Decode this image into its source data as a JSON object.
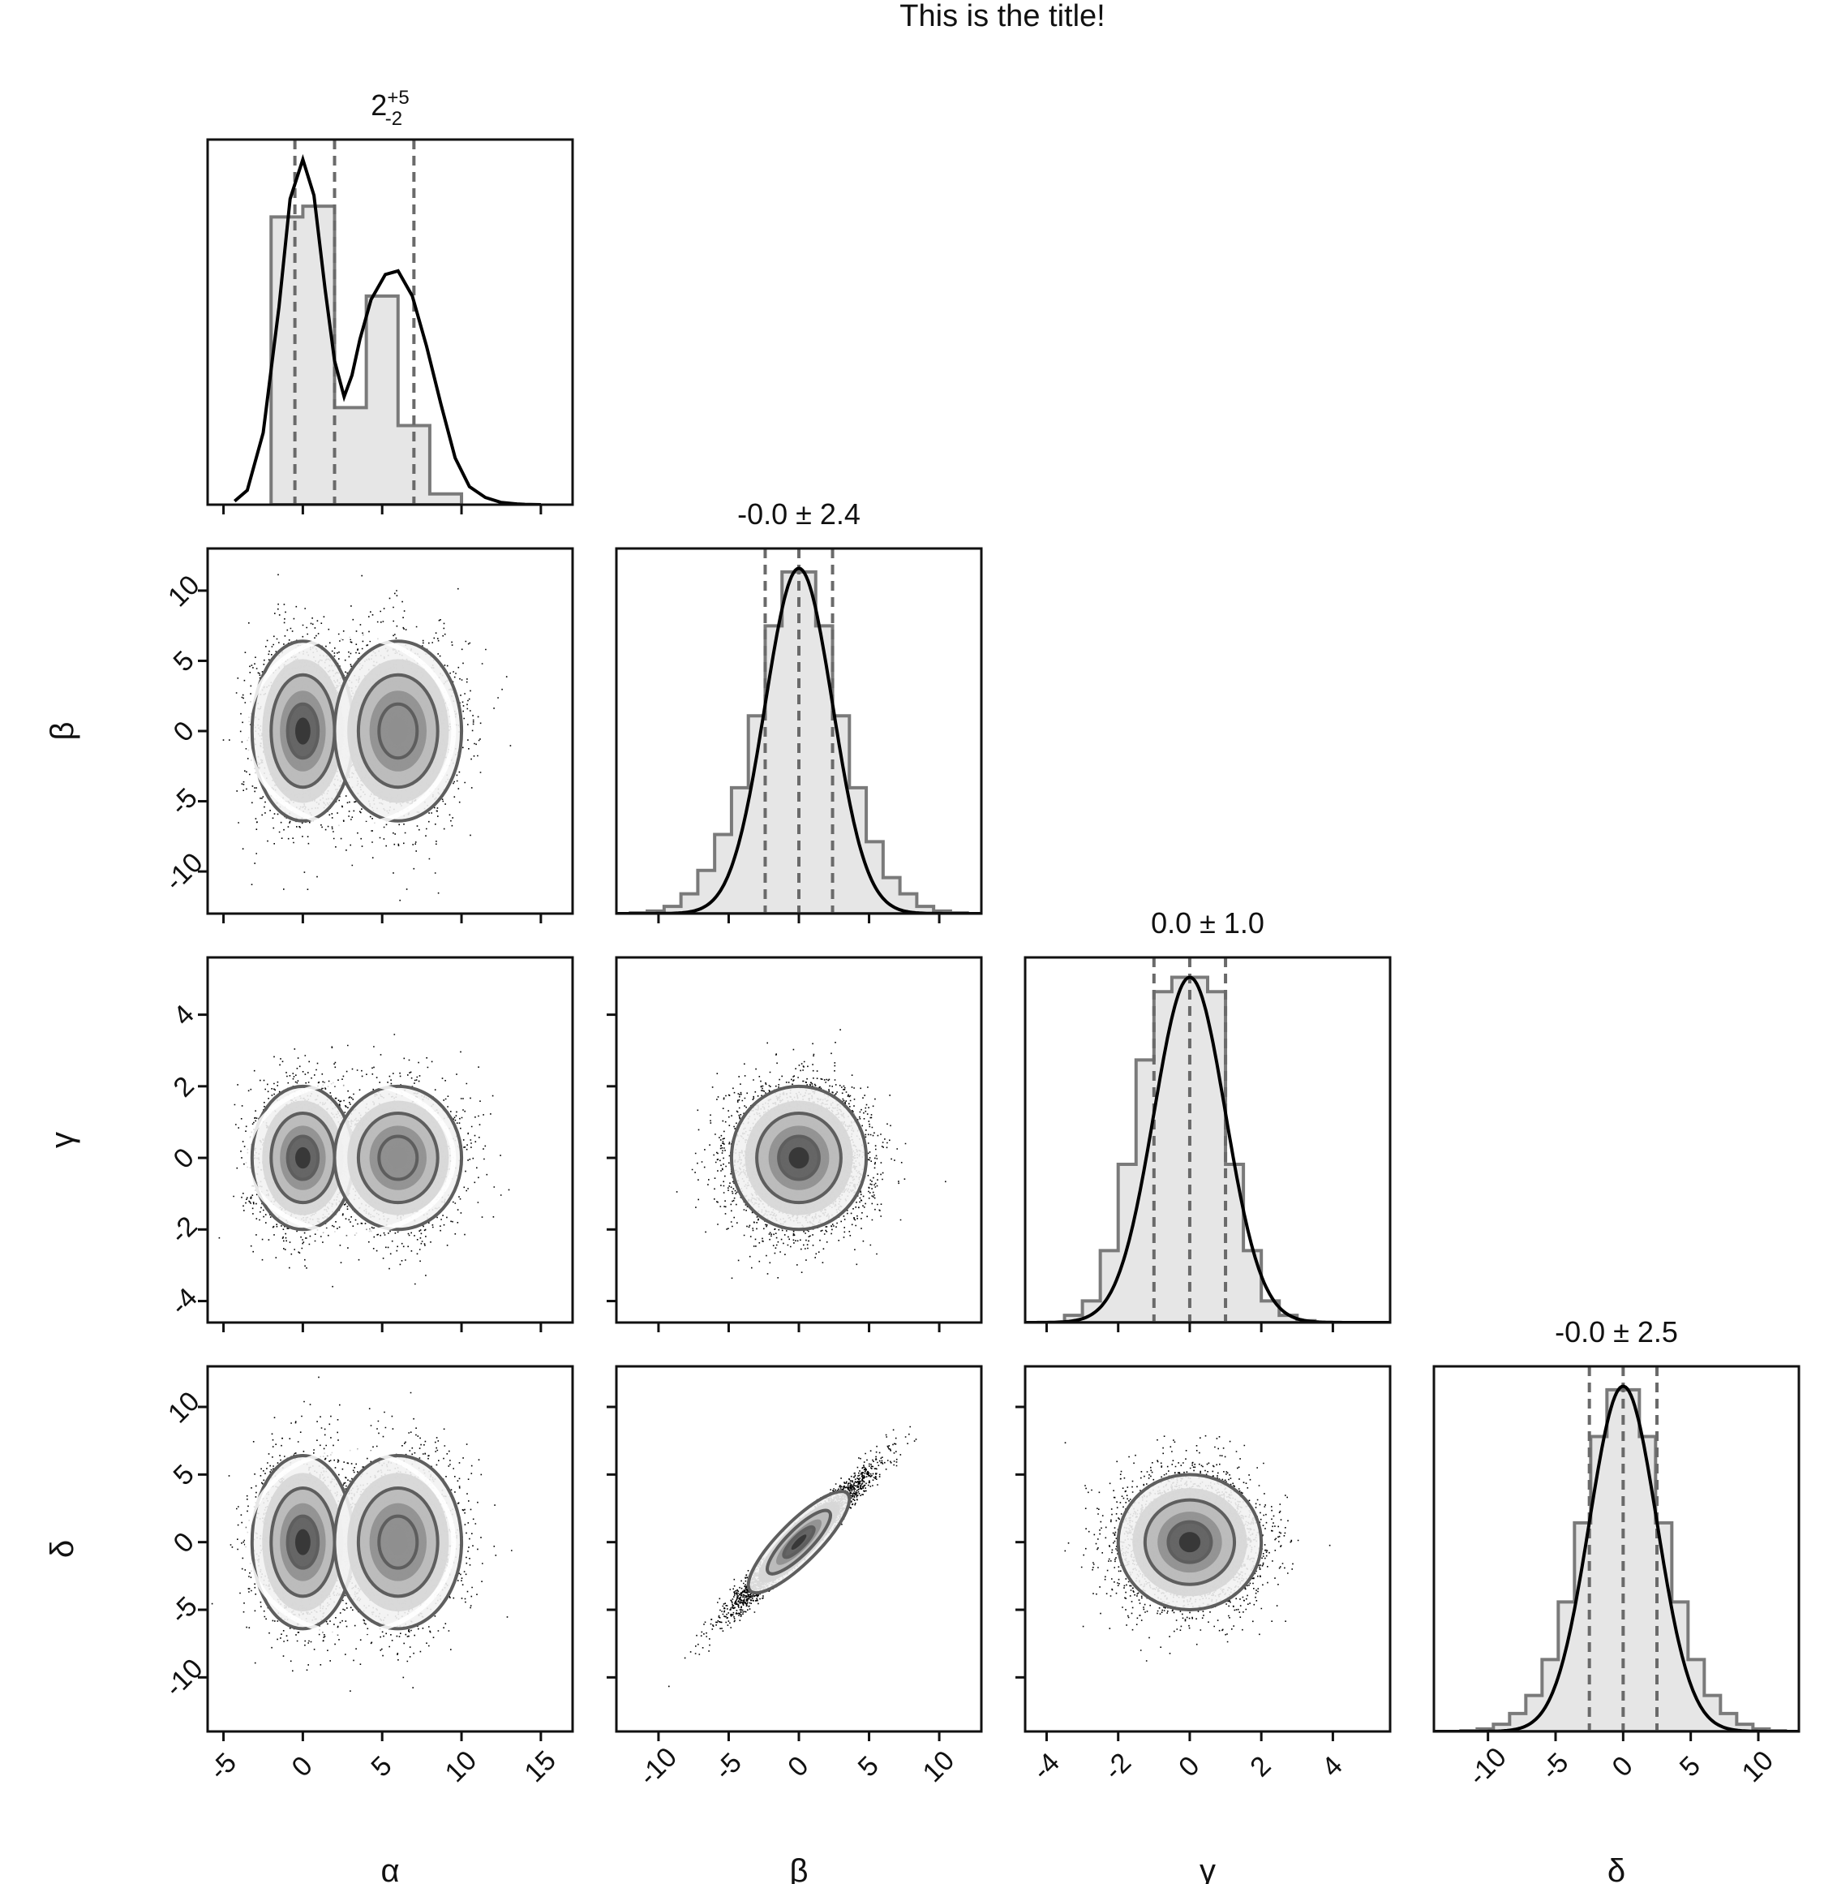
{
  "title": "This is the title!",
  "colors": {
    "frame": "#111111",
    "hist_fill": "#e6e6e6",
    "hist_step": "#7a7a7a",
    "kde": "#000000",
    "quantile_line": "#6a6a6a",
    "scatter": "#000000",
    "density_shades": [
      "#f2f2f2",
      "#d6d6d6",
      "#b8b8b8",
      "#8f8f8f",
      "#606060",
      "#333333"
    ]
  },
  "chart_data": {
    "type": "corner",
    "parameters": [
      {
        "symbol": "α",
        "axis_label": "α",
        "range": [
          -6,
          17
        ],
        "ticks": [
          -5,
          0,
          5,
          10,
          15
        ],
        "tick_labels": [
          "-5",
          "0",
          "5",
          "10",
          "15"
        ],
        "summary": {
          "base": "2",
          "sup": "+5",
          "sub": "-2"
        },
        "quantiles": [
          -0.5,
          2,
          7
        ],
        "marginal": {
          "bin_edges": [
            -2,
            0,
            2,
            4,
            6,
            8,
            10
          ],
          "bin_heights": [
            0.8,
            0.83,
            0.27,
            0.58,
            0.22,
            0.03
          ],
          "kde_x": [
            -4.3,
            -3.5,
            -2.5,
            -1.5,
            -0.8,
            0,
            0.7,
            1.4,
            2,
            2.6,
            3.1,
            3.6,
            4.3,
            5.2,
            6,
            6.9,
            7.8,
            8.7,
            9.6,
            10.5,
            11.5,
            12.5,
            13.5,
            14,
            15
          ],
          "kde_y": [
            0.01,
            0.04,
            0.2,
            0.55,
            0.85,
            0.96,
            0.86,
            0.6,
            0.4,
            0.3,
            0.36,
            0.46,
            0.57,
            0.64,
            0.65,
            0.58,
            0.44,
            0.28,
            0.13,
            0.05,
            0.02,
            0.006,
            0.002,
            0.001,
            0
          ]
        }
      },
      {
        "symbol": "β",
        "axis_label": "β",
        "range": [
          -13,
          13
        ],
        "ticks": [
          -10,
          -5,
          0,
          5,
          10
        ],
        "tick_labels": [
          "-10",
          "-5",
          "0",
          "5",
          "10"
        ],
        "summary": {
          "base": "-0.0 ± 2.4"
        },
        "quantiles": [
          -2.4,
          0,
          2.4
        ],
        "marginal": {
          "bin_edges": [
            -12,
            -10.8,
            -9.6,
            -8.4,
            -7.2,
            -6,
            -4.8,
            -3.6,
            -2.4,
            -1.2,
            0,
            1.2,
            2.4,
            3.6,
            4.8,
            6,
            7.2,
            8.4,
            9.6,
            10.8,
            12
          ],
          "bin_heights": [
            0.002,
            0.007,
            0.02,
            0.055,
            0.12,
            0.22,
            0.35,
            0.55,
            0.8,
            0.95,
            0.95,
            0.8,
            0.55,
            0.35,
            0.2,
            0.1,
            0.055,
            0.02,
            0.007,
            0.002
          ],
          "kde_sigma": 2.4,
          "kde_peak": 0.96
        }
      },
      {
        "symbol": "γ",
        "axis_label": "γ",
        "range": [
          -4.6,
          5.6
        ],
        "ticks": [
          -4,
          -2,
          0,
          2,
          4
        ],
        "tick_labels": [
          "-4",
          "-2",
          "0",
          "2",
          "4"
        ],
        "summary": {
          "base": "0.0 ± 1.0"
        },
        "quantiles": [
          -1,
          0,
          1
        ],
        "marginal": {
          "bin_edges": [
            -3.5,
            -3,
            -2.5,
            -2,
            -1.5,
            -1,
            -0.5,
            0,
            0.5,
            1,
            1.5,
            2,
            2.5,
            3,
            3.5
          ],
          "bin_heights": [
            0.02,
            0.06,
            0.2,
            0.44,
            0.73,
            0.92,
            0.96,
            0.96,
            0.92,
            0.44,
            0.2,
            0.06,
            0.02,
            0.005
          ],
          "kde_sigma": 1.0,
          "kde_peak": 0.96
        }
      },
      {
        "symbol": "δ",
        "axis_label": "δ",
        "range": [
          -14,
          13
        ],
        "ticks": [
          -10,
          -5,
          0,
          5,
          10
        ],
        "tick_labels": [
          "-10",
          "-5",
          "0",
          "5",
          "10"
        ],
        "summary": {
          "base": "-0.0 ± 2.5"
        },
        "quantiles": [
          -2.5,
          0,
          2.5
        ],
        "marginal": {
          "bin_edges": [
            -12,
            -10.8,
            -9.6,
            -8.4,
            -7.2,
            -6,
            -4.8,
            -3.6,
            -2.4,
            -1.2,
            0,
            1.2,
            2.4,
            3.6,
            4.8,
            6,
            7.2,
            8.4,
            9.6,
            10.8,
            12
          ],
          "bin_heights": [
            0.002,
            0.007,
            0.02,
            0.05,
            0.1,
            0.2,
            0.36,
            0.58,
            0.82,
            0.95,
            0.95,
            0.82,
            0.58,
            0.36,
            0.2,
            0.1,
            0.05,
            0.02,
            0.007,
            0.002
          ],
          "kde_sigma": 2.5,
          "kde_peak": 0.96
        }
      }
    ],
    "joint_panels": [
      {
        "row": 1,
        "col": 0,
        "shape": "bimodal",
        "centers": [
          [
            0,
            0
          ],
          [
            6,
            0
          ]
        ],
        "spread": [
          1.6,
          3.2
        ],
        "rho": 0
      },
      {
        "row": 2,
        "col": 0,
        "shape": "bimodal",
        "centers": [
          [
            0,
            0
          ],
          [
            6,
            0
          ]
        ],
        "spread": [
          1.6,
          1.0
        ],
        "rho": 0
      },
      {
        "row": 2,
        "col": 1,
        "shape": "gaussian",
        "centers": [
          [
            0,
            0
          ]
        ],
        "spread": [
          2.4,
          1.0
        ],
        "rho": 0
      },
      {
        "row": 3,
        "col": 0,
        "shape": "bimodal",
        "centers": [
          [
            0,
            0
          ],
          [
            6,
            0
          ]
        ],
        "spread": [
          1.6,
          3.2
        ],
        "rho": 0
      },
      {
        "row": 3,
        "col": 1,
        "shape": "gaussian",
        "centers": [
          [
            0,
            0
          ]
        ],
        "spread": [
          2.4,
          2.5
        ],
        "rho": 0.97
      },
      {
        "row": 3,
        "col": 2,
        "shape": "gaussian",
        "centers": [
          [
            0,
            0
          ]
        ],
        "spread": [
          1.0,
          2.5
        ],
        "rho": 0
      }
    ]
  }
}
